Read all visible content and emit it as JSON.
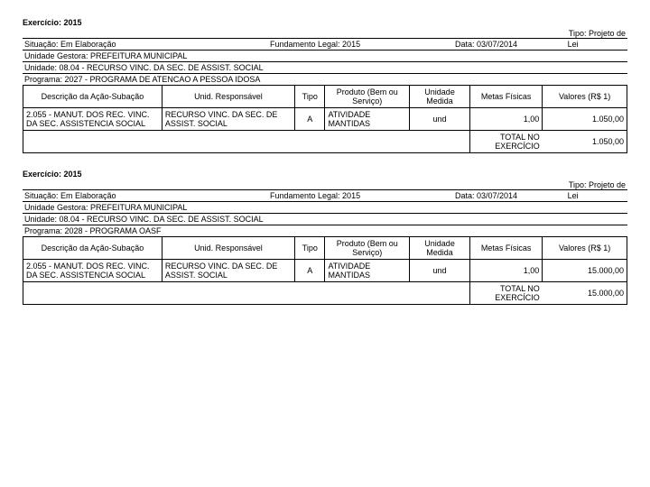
{
  "sections": [
    {
      "exercicio": "Exercício: 2015",
      "tipo": "Tipo: Projeto de Lei",
      "situacao": "Situação: Em Elaboração",
      "fundamento": "Fundamento Legal: 2015",
      "data": "Data: 03/07/2014",
      "unidadeGestora": "Unidade Gestora: PREFEITURA MUNICIPAL",
      "unidade": "Unidade: 08.04 - RECURSO VINC. DA SEC. DE ASSIST. SOCIAL",
      "programa": "Programa: 2027 - PROGRAMA DE ATENCAO A PESSOA IDOSA",
      "headers": {
        "desc": "Descrição da Ação-Subação",
        "unid": "Unid. Responsável",
        "tipo": "Tipo",
        "prod": "Produto (Bem ou Serviço)",
        "umed": "Unidade Medida",
        "metas": "Metas Físicas",
        "val": "Valores (R$ 1)"
      },
      "row": {
        "desc": "2.055 - MANUT. DOS REC. VINC. DA SEC. ASSISTENCIA SOCIAL",
        "unid": "RECURSO VINC. DA SEC. DE ASSIST. SOCIAL",
        "tipo": "A",
        "prod": "ATIVIDADE MANTIDAS",
        "umed": "und",
        "metas": "1,00",
        "val": "1.050,00"
      },
      "totalLabel": "TOTAL NO EXERCÍCIO",
      "totalVal": "1.050,00"
    },
    {
      "exercicio": "Exercício: 2015",
      "tipo": "Tipo: Projeto de Lei",
      "situacao": "Situação: Em Elaboração",
      "fundamento": "Fundamento Legal: 2015",
      "data": "Data: 03/07/2014",
      "unidadeGestora": "Unidade Gestora: PREFEITURA MUNICIPAL",
      "unidade": "Unidade: 08.04 - RECURSO VINC. DA SEC. DE ASSIST. SOCIAL",
      "programa": "Programa: 2028 - PROGRAMA OASF",
      "headers": {
        "desc": "Descrição da Ação-Subação",
        "unid": "Unid. Responsável",
        "tipo": "Tipo",
        "prod": "Produto (Bem ou Serviço)",
        "umed": "Unidade Medida",
        "metas": "Metas Físicas",
        "val": "Valores (R$ 1)"
      },
      "row": {
        "desc": "2.055 - MANUT. DOS REC. VINC. DA SEC. ASSISTENCIA SOCIAL",
        "unid": "RECURSO VINC. DA SEC. DE ASSIST. SOCIAL",
        "tipo": "A",
        "prod": "ATIVIDADE MANTIDAS",
        "umed": "und",
        "metas": "1,00",
        "val": "15.000,00"
      },
      "totalLabel": "TOTAL NO EXERCÍCIO",
      "totalVal": "15.000,00"
    }
  ]
}
